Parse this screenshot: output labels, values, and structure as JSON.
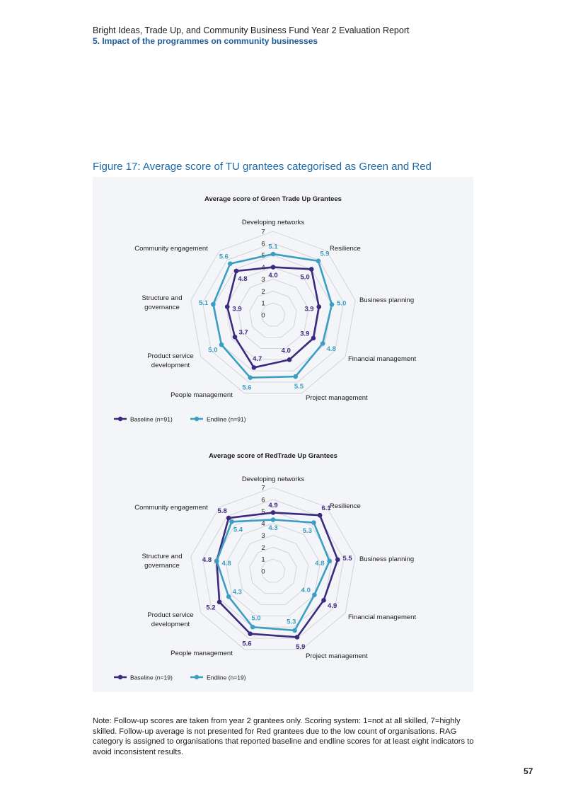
{
  "header": {
    "title": "Bright Ideas, Trade Up, and Community Business Fund Year 2 Evaluation Report",
    "section": "5. Impact of the programmes on community businesses"
  },
  "figure_title": "Figure 17: Average score of TU grantees categorised as Green and Red",
  "colors": {
    "baseline": "#3b2a7e",
    "endline": "#3b9ec2",
    "grid": "#cfd1d8",
    "panel": "#f4f5f8"
  },
  "chart_data": [
    {
      "type": "radar",
      "title": "Average score of Green Trade Up Grantees",
      "axes": [
        "Developing networks",
        "Resilience",
        "Business planning",
        "Financial management",
        "Project management",
        "People management",
        "Product service development",
        "Structure and governance",
        "Community engagement"
      ],
      "scale_ticks": [
        "0",
        "1",
        "2",
        "3",
        "4",
        "5",
        "6",
        "7"
      ],
      "range": [
        0,
        7
      ],
      "series": [
        {
          "name": "Baseline (n=91)",
          "values": [
            4.0,
            5.0,
            3.9,
            3.9,
            4.0,
            4.7,
            3.7,
            3.9,
            4.8
          ]
        },
        {
          "name": "Endline (n=91)",
          "values": [
            5.1,
            5.9,
            5.0,
            4.8,
            5.5,
            5.6,
            5.0,
            5.1,
            5.6
          ]
        }
      ]
    },
    {
      "type": "radar",
      "title": "Average score of RedTrade Up Grantees",
      "axes": [
        "Developing networks",
        "Resilience",
        "Business planning",
        "Financial management",
        "Project management",
        "People management",
        "Product service development",
        "Structure and governance",
        "Community engagement"
      ],
      "scale_ticks": [
        "0",
        "1",
        "2",
        "3",
        "4",
        "5",
        "6",
        "7"
      ],
      "range": [
        0,
        7
      ],
      "series": [
        {
          "name": "Baseline (n=19)",
          "values": [
            4.9,
            6.1,
            5.5,
            4.9,
            5.9,
            5.6,
            5.2,
            4.8,
            5.8
          ]
        },
        {
          "name": "Endline (n=19)",
          "values": [
            4.3,
            5.3,
            4.8,
            4.0,
            5.3,
            5.0,
            4.3,
            4.8,
            5.4
          ]
        }
      ]
    }
  ],
  "note": "Note: Follow-up scores are taken from year 2 grantees only. Scoring system: 1=not at all skilled, 7=highly skilled. Follow-up average is not presented for Red grantees due to the low count of organisations. RAG category is assigned to organisations that reported baseline and endline scores for at least eight indicators to avoid inconsistent results.",
  "page_number": "57"
}
